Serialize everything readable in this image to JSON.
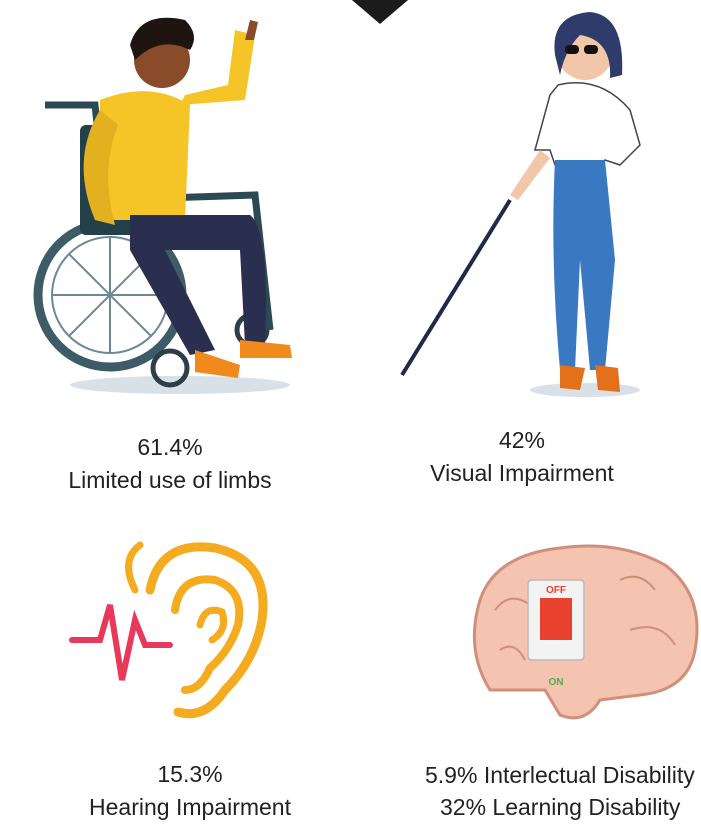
{
  "items": [
    {
      "value": "61.4%",
      "label": "Limited use of limbs"
    },
    {
      "value": "42%",
      "label": "Visual Impairment"
    },
    {
      "value": "15.3%",
      "label": "Hearing Impairment"
    },
    {
      "lines": [
        "5.9% Interlectual Disability",
        "32% Learning Disability"
      ]
    }
  ]
}
